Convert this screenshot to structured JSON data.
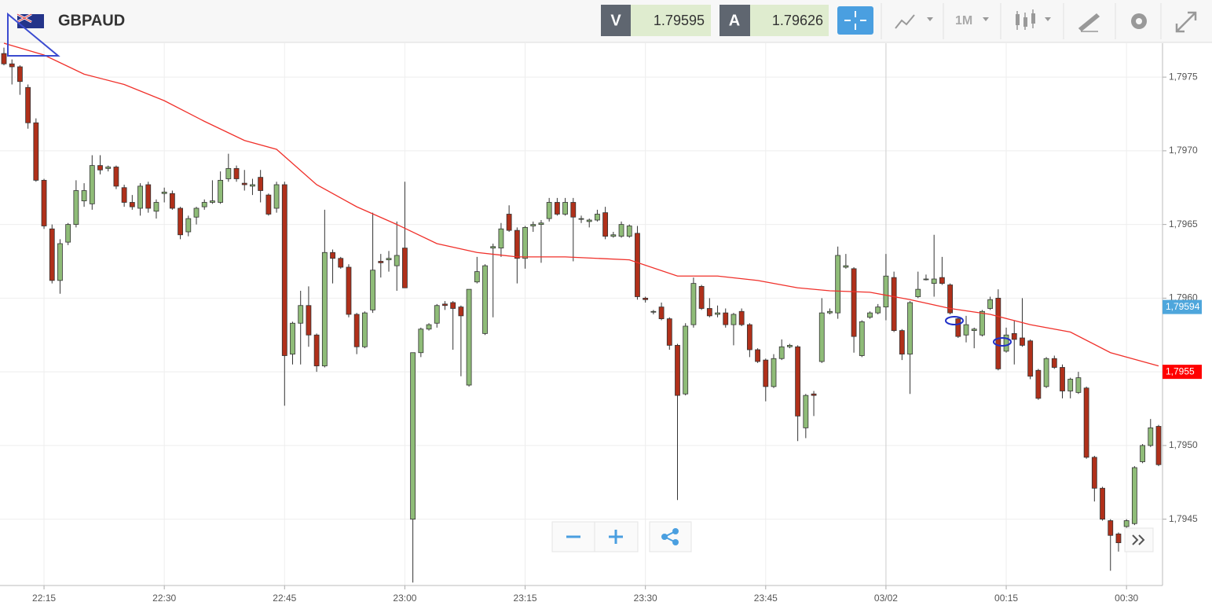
{
  "header": {
    "symbol": "GBPAUD",
    "bid_label": "V",
    "bid": "1.79595",
    "ask_label": "A",
    "ask": "1.79626",
    "timeframe": "1M"
  },
  "chart_data": {
    "type": "candlestick",
    "categories": [
      "22:10",
      "22:11",
      "22:12",
      "22:13",
      "22:14",
      "22:15",
      "22:16",
      "22:17",
      "22:18",
      "22:19",
      "22:20",
      "22:21",
      "22:22",
      "22:23",
      "22:24",
      "22:25",
      "22:26",
      "22:27",
      "22:28",
      "22:29",
      "22:30",
      "22:31",
      "22:32",
      "22:33",
      "22:34",
      "22:35",
      "22:36",
      "22:37",
      "22:38",
      "22:39",
      "22:40",
      "22:41",
      "22:42",
      "22:43",
      "22:44",
      "22:45",
      "22:46",
      "22:47",
      "22:48",
      "22:49",
      "22:50",
      "22:51",
      "22:52",
      "22:53",
      "22:54",
      "22:55",
      "22:56",
      "22:57",
      "22:58",
      "22:59",
      "23:00",
      "23:01",
      "23:02",
      "23:03",
      "23:04",
      "23:05",
      "23:06",
      "23:07",
      "23:08",
      "23:09",
      "23:10",
      "23:11",
      "23:12",
      "23:13",
      "23:14",
      "23:15",
      "23:16",
      "23:17",
      "23:18",
      "23:19",
      "23:20",
      "23:21",
      "23:22",
      "23:23",
      "23:24",
      "23:25",
      "23:26",
      "23:27",
      "23:28",
      "23:29",
      "23:30",
      "23:31",
      "23:32",
      "23:33",
      "23:34",
      "23:35",
      "23:36",
      "23:37",
      "23:38",
      "23:39",
      "23:40",
      "23:41",
      "23:42",
      "23:43",
      "23:44",
      "23:45",
      "23:46",
      "23:47",
      "23:48",
      "23:49",
      "23:50",
      "23:51",
      "23:52",
      "23:53",
      "23:54",
      "23:55",
      "23:56",
      "23:57",
      "23:58",
      "23:59",
      "00:00",
      "00:01",
      "00:02",
      "00:03",
      "00:04",
      "00:05",
      "00:06",
      "00:07",
      "00:08",
      "00:09",
      "00:10",
      "00:11",
      "00:12",
      "00:13",
      "00:14",
      "00:15",
      "00:16",
      "00:17",
      "00:18",
      "00:19",
      "00:20",
      "00:21",
      "00:22",
      "00:23",
      "00:24",
      "00:25",
      "00:26",
      "00:27",
      "00:28",
      "00:29",
      "00:30",
      "00:31",
      "00:32",
      "00:33",
      "00:34"
    ],
    "candles": [
      [
        1.79766,
        1.7977,
        1.79758,
        1.79759
      ],
      [
        1.79759,
        1.79762,
        1.79745,
        1.79757
      ],
      [
        1.79757,
        1.79758,
        1.79738,
        1.79747
      ],
      [
        1.79743,
        1.79745,
        1.79715,
        1.79719
      ],
      [
        1.79719,
        1.79722,
        1.79679,
        1.7968
      ],
      [
        1.7968,
        1.79681,
        1.79647,
        1.79649
      ],
      [
        1.79647,
        1.7965,
        1.7961,
        1.79612
      ],
      [
        1.79612,
        1.7964,
        1.79603,
        1.79637
      ],
      [
        1.79638,
        1.79651,
        1.79636,
        1.7965
      ],
      [
        1.7965,
        1.7968,
        1.79648,
        1.79673
      ],
      [
        1.79666,
        1.79678,
        1.79662,
        1.79673
      ],
      [
        1.79664,
        1.79697,
        1.7966,
        1.7969
      ],
      [
        1.7969,
        1.79697,
        1.79684,
        1.79687
      ],
      [
        1.79688,
        1.7969,
        1.79686,
        1.79689
      ],
      [
        1.79689,
        1.7969,
        1.79674,
        1.79676
      ],
      [
        1.79675,
        1.79677,
        1.79662,
        1.79665
      ],
      [
        1.79665,
        1.7967,
        1.7966,
        1.79662
      ],
      [
        1.79661,
        1.79678,
        1.79656,
        1.79676
      ],
      [
        1.79677,
        1.79679,
        1.79658,
        1.79661
      ],
      [
        1.79659,
        1.79667,
        1.79654,
        1.79665
      ],
      [
        1.79671,
        1.79675,
        1.79665,
        1.79672
      ],
      [
        1.79671,
        1.79673,
        1.7966,
        1.79661
      ],
      [
        1.79661,
        1.79662,
        1.7964,
        1.79643
      ],
      [
        1.79645,
        1.79656,
        1.79642,
        1.79654
      ],
      [
        1.79655,
        1.79662,
        1.7965,
        1.79661
      ],
      [
        1.79662,
        1.79667,
        1.7966,
        1.79665
      ],
      [
        1.79665,
        1.7968,
        1.79664,
        1.79666
      ],
      [
        1.79665,
        1.79686,
        1.79664,
        1.7968
      ],
      [
        1.79681,
        1.79698,
        1.79679,
        1.79688
      ],
      [
        1.79688,
        1.7969,
        1.79679,
        1.79681
      ],
      [
        1.79678,
        1.79687,
        1.79673,
        1.79677
      ],
      [
        1.79676,
        1.79681,
        1.7967,
        1.79677
      ],
      [
        1.79682,
        1.79687,
        1.79665,
        1.79673
      ],
      [
        1.7967,
        1.79671,
        1.79656,
        1.79657
      ],
      [
        1.79661,
        1.79679,
        1.79658,
        1.79677
      ],
      [
        1.79677,
        1.79679,
        1.79527,
        1.79561
      ],
      [
        1.79562,
        1.79584,
        1.79555,
        1.79583
      ],
      [
        1.79583,
        1.79605,
        1.79555,
        1.79595
      ],
      [
        1.79595,
        1.79608,
        1.79567,
        1.79575
      ],
      [
        1.79575,
        1.79576,
        1.7955,
        1.79554
      ],
      [
        1.79554,
        1.7966,
        1.79553,
        1.79631
      ],
      [
        1.79631,
        1.79633,
        1.7961,
        1.79627
      ],
      [
        1.79627,
        1.79628,
        1.7962,
        1.79621
      ],
      [
        1.79621,
        1.79623,
        1.79587,
        1.79589
      ],
      [
        1.79589,
        1.7959,
        1.79562,
        1.79567
      ],
      [
        1.79567,
        1.79591,
        1.79566,
        1.7959
      ],
      [
        1.79592,
        1.79658,
        1.7959,
        1.79619
      ],
      [
        1.79625,
        1.7963,
        1.79614,
        1.79624
      ],
      [
        1.79626,
        1.79632,
        1.79618,
        1.79627
      ],
      [
        1.79622,
        1.79652,
        1.79605,
        1.79629
      ],
      [
        1.79634,
        1.79679,
        1.79607,
        1.79607
      ],
      [
        1.7945,
        1.79563,
        1.79407,
        1.79563
      ],
      [
        1.79563,
        1.7958,
        1.7956,
        1.79579
      ],
      [
        1.79579,
        1.79583,
        1.79578,
        1.79582
      ],
      [
        1.79583,
        1.79596,
        1.7958,
        1.79595
      ],
      [
        1.79596,
        1.79598,
        1.79592,
        1.79595
      ],
      [
        1.79597,
        1.79598,
        1.79565,
        1.79593
      ],
      [
        1.79594,
        1.79595,
        1.79547,
        1.79588
      ],
      [
        1.79541,
        1.79606,
        1.7954,
        1.79606
      ],
      [
        1.79611,
        1.79628,
        1.7961,
        1.79618
      ],
      [
        1.79576,
        1.79623,
        1.79575,
        1.79622
      ],
      [
        1.79634,
        1.79637,
        1.79587,
        1.79635
      ],
      [
        1.79634,
        1.79651,
        1.79628,
        1.79647
      ],
      [
        1.79657,
        1.79663,
        1.79645,
        1.79646
      ],
      [
        1.79646,
        1.79648,
        1.7961,
        1.79627
      ],
      [
        1.79627,
        1.79649,
        1.7962,
        1.79648
      ],
      [
        1.79649,
        1.79652,
        1.79645,
        1.7965
      ],
      [
        1.7965,
        1.79653,
        1.79624,
        1.79651
      ],
      [
        1.79654,
        1.79668,
        1.79652,
        1.79665
      ],
      [
        1.79665,
        1.79668,
        1.79656,
        1.79657
      ],
      [
        1.79657,
        1.79668,
        1.79656,
        1.79665
      ],
      [
        1.79665,
        1.79668,
        1.79625,
        1.79655
      ],
      [
        1.79654,
        1.79656,
        1.79651,
        1.79654
      ],
      [
        1.79652,
        1.79654,
        1.79648,
        1.79653
      ],
      [
        1.79653,
        1.7966,
        1.79652,
        1.79657
      ],
      [
        1.79658,
        1.79662,
        1.7964,
        1.79642
      ],
      [
        1.79642,
        1.79645,
        1.79641,
        1.79643
      ],
      [
        1.79642,
        1.79652,
        1.79641,
        1.7965
      ],
      [
        1.79642,
        1.7965,
        1.79641,
        1.79649
      ],
      [
        1.79644,
        1.79649,
        1.79599,
        1.79601
      ],
      [
        1.796,
        1.79601,
        1.79597,
        1.79599
      ],
      [
        1.79591,
        1.79592,
        1.79589,
        1.79591
      ],
      [
        1.79594,
        1.79597,
        1.79585,
        1.79586
      ],
      [
        1.79586,
        1.79587,
        1.79565,
        1.79568
      ],
      [
        1.79568,
        1.79569,
        1.79463,
        1.79534
      ],
      [
        1.79535,
        1.79583,
        1.79534,
        1.79581
      ],
      [
        1.79582,
        1.79614,
        1.7958,
        1.7961
      ],
      [
        1.79608,
        1.79609,
        1.79592,
        1.79593
      ],
      [
        1.79593,
        1.796,
        1.79587,
        1.79588
      ],
      [
        1.79589,
        1.79595,
        1.79587,
        1.7959
      ],
      [
        1.7959,
        1.79593,
        1.7958,
        1.79582
      ],
      [
        1.79582,
        1.7959,
        1.79568,
        1.79589
      ],
      [
        1.79591,
        1.79593,
        1.79581,
        1.79582
      ],
      [
        1.79582,
        1.79583,
        1.7956,
        1.79565
      ],
      [
        1.79565,
        1.79566,
        1.79556,
        1.79557
      ],
      [
        1.79558,
        1.79559,
        1.7953,
        1.7954
      ],
      [
        1.7954,
        1.79562,
        1.79539,
        1.79559
      ],
      [
        1.79559,
        1.79572,
        1.79558,
        1.79567
      ],
      [
        1.79567,
        1.79569,
        1.79566,
        1.79568
      ],
      [
        1.79567,
        1.79568,
        1.79503,
        1.7952
      ],
      [
        1.79512,
        1.79535,
        1.79505,
        1.79534
      ],
      [
        1.79535,
        1.79537,
        1.7952,
        1.79534
      ],
      [
        1.79557,
        1.796,
        1.79556,
        1.7959
      ],
      [
        1.7959,
        1.79593,
        1.79589,
        1.79591
      ],
      [
        1.7959,
        1.79635,
        1.79586,
        1.79629
      ],
      [
        1.79621,
        1.7963,
        1.7962,
        1.79622
      ],
      [
        1.7962,
        1.79621,
        1.79563,
        1.79574
      ],
      [
        1.79561,
        1.79585,
        1.7956,
        1.79584
      ],
      [
        1.79587,
        1.79591,
        1.79586,
        1.7959
      ],
      [
        1.7959,
        1.79596,
        1.79589,
        1.79594
      ],
      [
        1.79594,
        1.7963,
        1.79585,
        1.79615
      ],
      [
        1.79614,
        1.79618,
        1.79577,
        1.79578
      ],
      [
        1.79578,
        1.79579,
        1.79558,
        1.79562
      ],
      [
        1.79562,
        1.79598,
        1.79535,
        1.79597
      ],
      [
        1.79601,
        1.79618,
        1.796,
        1.79606
      ],
      [
        1.79613,
        1.79616,
        1.79612,
        1.79613
      ],
      [
        1.7961,
        1.79643,
        1.79601,
        1.79613
      ],
      [
        1.79614,
        1.79628,
        1.79609,
        1.7961
      ],
      [
        1.79609,
        1.7961,
        1.79589,
        1.7959
      ],
      [
        1.79586,
        1.79587,
        1.79573,
        1.79574
      ],
      [
        1.79575,
        1.79588,
        1.7957,
        1.79582
      ],
      [
        1.79578,
        1.7958,
        1.79566,
        1.79579
      ],
      [
        1.79575,
        1.79592,
        1.79574,
        1.79591
      ],
      [
        1.79593,
        1.79601,
        1.79592,
        1.79599
      ],
      [
        1.796,
        1.79606,
        1.79551,
        1.79552
      ],
      [
        1.79564,
        1.7958,
        1.79563,
        1.79575
      ],
      [
        1.79576,
        1.79585,
        1.79555,
        1.79572
      ],
      [
        1.79573,
        1.796,
        1.79567,
        1.79568
      ],
      [
        1.79571,
        1.79572,
        1.79545,
        1.79547
      ],
      [
        1.79551,
        1.79552,
        1.79531,
        1.79532
      ],
      [
        1.7954,
        1.7956,
        1.79539,
        1.79559
      ],
      [
        1.79559,
        1.79561,
        1.79552,
        1.79553
      ],
      [
        1.79553,
        1.79555,
        1.79532,
        1.79537
      ],
      [
        1.79537,
        1.79546,
        1.79532,
        1.79545
      ],
      [
        1.79536,
        1.7955,
        1.79535,
        1.79546
      ],
      [
        1.79539,
        1.7954,
        1.79491,
        1.79492
      ],
      [
        1.79492,
        1.79493,
        1.79462,
        1.79471
      ],
      [
        1.79471,
        1.79472,
        1.79449,
        1.7945
      ],
      [
        1.79449,
        1.7945,
        1.79415,
        1.79439
      ],
      [
        1.7944,
        1.79441,
        1.79428,
        1.79434
      ],
      [
        1.79445,
        1.7945,
        1.79444,
        1.79449
      ],
      [
        1.79447,
        1.79486,
        1.79446,
        1.79485
      ],
      [
        1.79489,
        1.79501,
        1.79488,
        1.795
      ],
      [
        1.795,
        1.79518,
        1.79499,
        1.79512
      ],
      [
        1.79513,
        1.79514,
        1.79486,
        1.79487
      ]
    ],
    "up_color": "#8fbc78",
    "down_color": "#b0301a",
    "ma": {
      "color": "#f0302a",
      "times": [
        "22:10",
        "22:15",
        "22:20",
        "22:25",
        "22:30",
        "22:35",
        "22:40",
        "22:44",
        "22:49",
        "22:54",
        "22:59",
        "23:04",
        "23:09",
        "23:14",
        "23:20",
        "23:28",
        "23:34",
        "23:39",
        "23:44",
        "23:49",
        "23:53",
        "23:58",
        "00:03",
        "00:08",
        "00:13",
        "00:18",
        "00:23",
        "00:28",
        "00:34"
      ],
      "values": [
        1.79773,
        1.79765,
        1.79752,
        1.79745,
        1.79734,
        1.7972,
        1.79707,
        1.79701,
        1.79677,
        1.79662,
        1.7965,
        1.79637,
        1.79631,
        1.79628,
        1.79628,
        1.79626,
        1.79615,
        1.79615,
        1.79612,
        1.79607,
        1.79605,
        1.79604,
        1.79599,
        1.79593,
        1.79589,
        1.79582,
        1.79577,
        1.79563,
        1.79554
      ]
    },
    "ylim": [
      1.79405,
      1.79773
    ],
    "yticks": [
      {
        "value": 1.7945,
        "label": "1,7945"
      },
      {
        "value": 1.795,
        "label": "1,7950"
      },
      {
        "value": 1.7955,
        "label": "1,7955"
      },
      {
        "value": 1.796,
        "label": "1,7960"
      },
      {
        "value": 1.7965,
        "label": "1,7965"
      },
      {
        "value": 1.797,
        "label": "1,7970"
      },
      {
        "value": 1.7975,
        "label": "1,7975"
      }
    ],
    "xticks": [
      "22:15",
      "22:30",
      "22:45",
      "23:00",
      "23:15",
      "23:30",
      "23:45",
      {
        "value": "00:00",
        "label": "03/02"
      },
      "00:15",
      "00:30"
    ],
    "price_tags": [
      {
        "value": 1.79594,
        "label": "1,79594",
        "color": "#4ea6dc"
      },
      {
        "value": 1.7955,
        "label": "1,7955",
        "color": "#ff0000"
      }
    ],
    "grid": true
  }
}
